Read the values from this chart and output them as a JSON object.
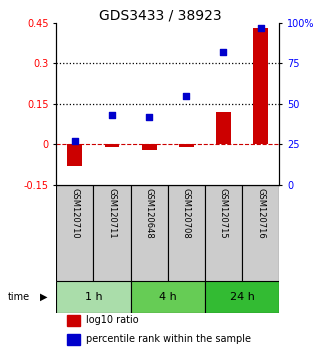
{
  "title": "GDS3433 / 38923",
  "samples": [
    "GSM120710",
    "GSM120711",
    "GSM120648",
    "GSM120708",
    "GSM120715",
    "GSM120716"
  ],
  "log10_ratio": [
    -0.08,
    -0.01,
    -0.02,
    -0.01,
    0.12,
    0.43
  ],
  "percentile_rank": [
    27,
    43,
    42,
    55,
    82,
    97
  ],
  "left_ylim": [
    -0.15,
    0.45
  ],
  "right_ylim": [
    0,
    100
  ],
  "left_yticks": [
    -0.15,
    0,
    0.15,
    0.3,
    0.45
  ],
  "left_yticklabels": [
    "-0.15",
    "0",
    "0.15",
    "0.3",
    "0.45"
  ],
  "right_yticks": [
    0,
    25,
    50,
    75,
    100
  ],
  "right_yticklabels": [
    "0",
    "25",
    "50",
    "75",
    "100%"
  ],
  "hlines": [
    0.15,
    0.3
  ],
  "bar_color": "#cc0000",
  "square_color": "#0000cc",
  "zero_line_color": "#cc0000",
  "label_bg_color": "#cccccc",
  "time_groups": [
    {
      "label": "1 h",
      "indices": [
        0,
        1
      ],
      "color": "#aaddaa"
    },
    {
      "label": "4 h",
      "indices": [
        2,
        3
      ],
      "color": "#66cc55"
    },
    {
      "label": "24 h",
      "indices": [
        4,
        5
      ],
      "color": "#33bb33"
    }
  ],
  "legend_red": "log10 ratio",
  "legend_blue": "percentile rank within the sample",
  "bar_width": 0.4,
  "square_size": 25,
  "background_color": "#ffffff",
  "n_samples": 6
}
